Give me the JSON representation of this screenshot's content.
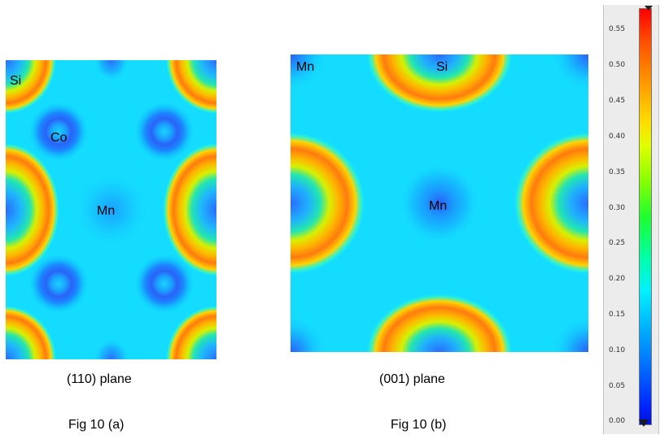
{
  "panel_a": {
    "atoms": {
      "si": "Si",
      "co": "Co",
      "mn": "Mn"
    },
    "plane": "(110) plane",
    "figure": "Fig 10 (a)"
  },
  "panel_b": {
    "atoms": {
      "mn_corner": "Mn",
      "si": "Si",
      "mn_center": "Mn"
    },
    "plane": "(001) plane",
    "figure": "Fig 10 (b)"
  },
  "color_scale": {
    "ticks": [
      "0.55",
      "0.50",
      "0.45",
      "0.40",
      "0.35",
      "0.30",
      "0.25",
      "0.20",
      "0.15",
      "0.10",
      "0.05",
      "0.00"
    ],
    "colors": {
      "high": "#ff0000",
      "mid_high": "#ffb800",
      "mid": "#10e8c0",
      "background": "#14dcff",
      "low": "#1a4cff"
    }
  }
}
